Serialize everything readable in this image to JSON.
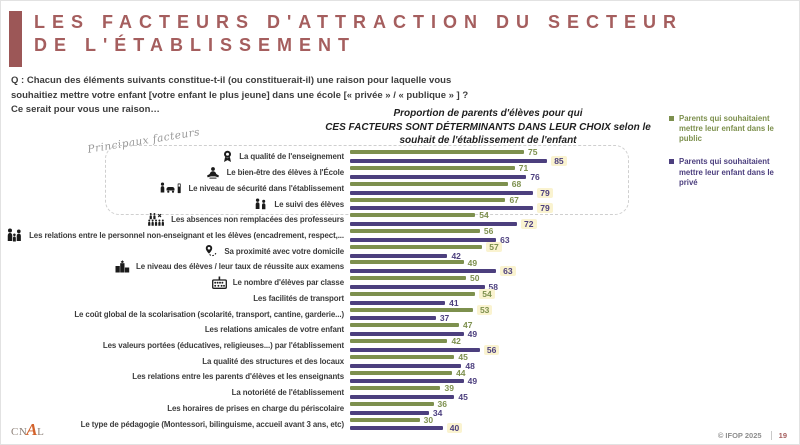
{
  "header": {
    "title_line1": "LES FACTEURS D'ATTRACTION DU SECTEUR",
    "title_line2": "DE L'ÉTABLISSEMENT"
  },
  "question": {
    "lines": [
      "Q : Chacun des éléments suivants constitue-t-il (ou constituerait-il) une raison pour laquelle vous",
      "souhaitiez mettre votre enfant [votre enfant le plus jeune] dans une école [« privée » / « publique » ] ?",
      "Ce serait pour vous une raison…"
    ]
  },
  "colors": {
    "accent": "#A55E5E",
    "public": "#7D904E",
    "prive": "#4C3F7E",
    "highlight": "#FAF3D0"
  },
  "chart_data": {
    "type": "bar",
    "orientation": "horizontal",
    "unit": "%",
    "xlim": [
      0,
      100
    ],
    "grid": false,
    "legend_position": "top-right",
    "title": "Proportion de parents d'élèves pour qui CES FACTEURS SONT DÉTERMINANTS DANS LEUR CHOIX selon le souhait de l'établissement de l'enfant",
    "title_lines": [
      "Proportion de parents d'élèves pour qui",
      "CES FACTEURS SONT DÉTERMINANTS DANS LEUR CHOIX selon le",
      "souhait de l'établissement de l'enfant"
    ],
    "series_meta": [
      {
        "key": "public",
        "label": "Parents qui souhaitaient mettre leur enfant dans le public",
        "color": "#7D904E"
      },
      {
        "key": "prive",
        "label": "Parents qui souhaitaient mettre leur enfant dans le privé",
        "color": "#4C3F7E"
      }
    ],
    "annotation_box": {
      "label": "Principaux facteurs",
      "rows_covered": 4
    },
    "rows": [
      {
        "label": "La qualité de l'enseignement",
        "icon": "medal-icon",
        "public": 75,
        "prive": 85,
        "highlight": "prive"
      },
      {
        "label": "Le bien-être des élèves à l'École",
        "icon": "meditation-icon",
        "public": 71,
        "prive": 76,
        "highlight": null
      },
      {
        "label": "Le niveau de sécurité dans l'établissement",
        "icon": "security-gate-icon",
        "public": 68,
        "prive": 79,
        "highlight": "prive"
      },
      {
        "label": "Le suivi des élèves",
        "icon": "students-icon",
        "public": 67,
        "prive": 79,
        "highlight": "prive"
      },
      {
        "label": "Les absences non remplacées des professeurs",
        "icon": "group-absence-icon",
        "public": 54,
        "prive": 72,
        "highlight": "prive"
      },
      {
        "label": "Les relations entre le personnel non-enseignant et les élèves (encadrement, respect,...",
        "icon": "family-icon",
        "public": 56,
        "prive": 63,
        "highlight": null
      },
      {
        "label": "Sa proximité avec votre domicile",
        "icon": "route-pin-icon",
        "public": 57,
        "prive": 42,
        "highlight": "public"
      },
      {
        "label": "Le niveau des élèves / leur taux de réussite aux examens",
        "icon": "podium-icon",
        "public": 49,
        "prive": 63,
        "highlight": "prive"
      },
      {
        "label": "Le nombre d'élèves par classe",
        "icon": "abacus-icon",
        "public": 50,
        "prive": 58,
        "highlight": null
      },
      {
        "label": "Les facilités de transport",
        "icon": null,
        "public": 54,
        "prive": 41,
        "highlight": "public"
      },
      {
        "label": "Le coût global de la scolarisation (scolarité, transport, cantine, garderie...)",
        "icon": null,
        "public": 53,
        "prive": 37,
        "highlight": "public"
      },
      {
        "label": "Les relations amicales de votre enfant",
        "icon": null,
        "public": 47,
        "prive": 49,
        "highlight": null
      },
      {
        "label": "Les valeurs portées (éducatives, religieuses...) par l'établissement",
        "icon": null,
        "public": 42,
        "prive": 56,
        "highlight": "prive"
      },
      {
        "label": "La qualité des structures et des locaux",
        "icon": null,
        "public": 45,
        "prive": 48,
        "highlight": null
      },
      {
        "label": "Les relations entre les parents d'élèves et les enseignants",
        "icon": null,
        "public": 44,
        "prive": 49,
        "highlight": null
      },
      {
        "label": "La notoriété de l'établissement",
        "icon": null,
        "public": 39,
        "prive": 45,
        "highlight": null
      },
      {
        "label": "Les horaires de prises en charge du périscolaire",
        "icon": null,
        "public": 36,
        "prive": 34,
        "highlight": null
      },
      {
        "label": "Le type de pédagogie (Montessori, bilinguisme, accueil avant 3 ans, etc)",
        "icon": null,
        "public": 30,
        "prive": 40,
        "highlight": "prive"
      }
    ]
  },
  "footer": {
    "logo_prefix": "CN",
    "logo_accent": "A",
    "logo_suffix": "L",
    "copyright": "© IFOP 2025",
    "page": "19"
  }
}
